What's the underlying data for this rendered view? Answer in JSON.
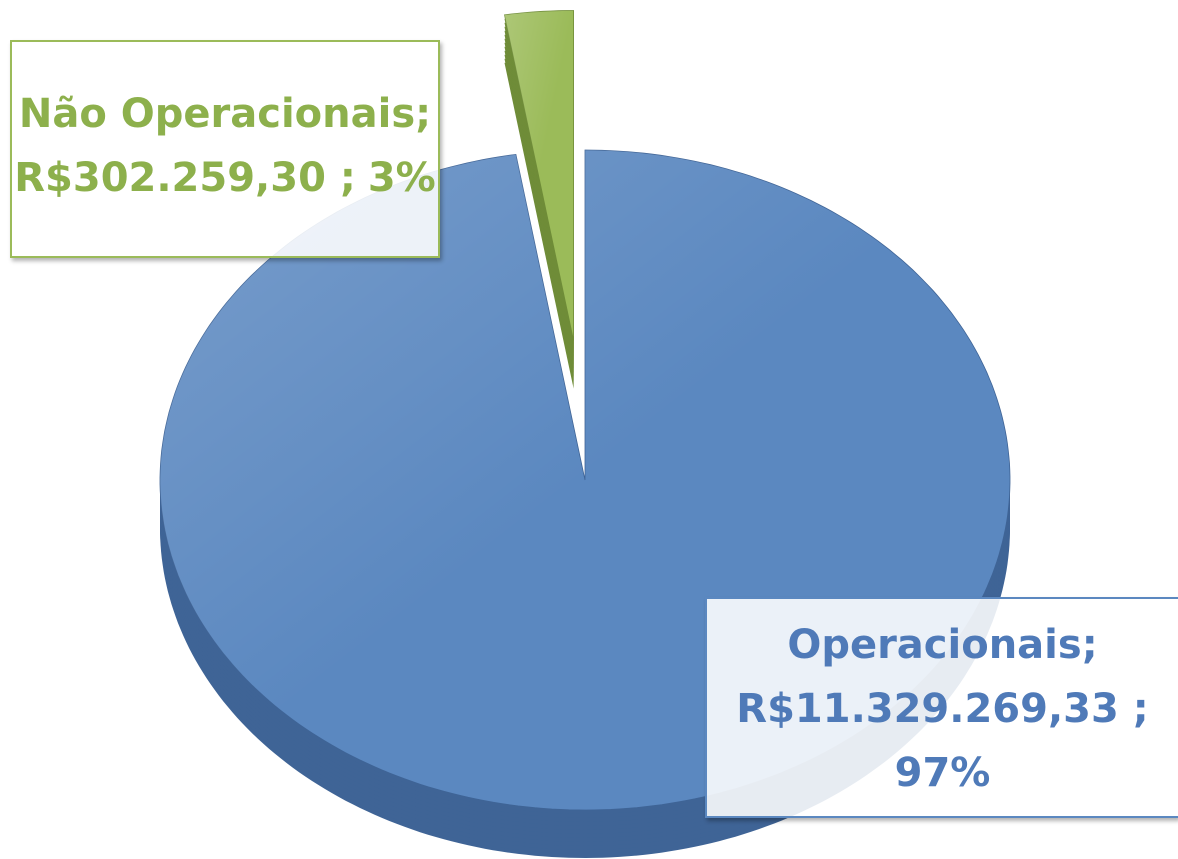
{
  "chart_data": {
    "type": "pie",
    "categories": [
      "Operacionais;",
      "Não Operacionais;"
    ],
    "values": [
      11329269.33,
      302259.3
    ],
    "value_labels": [
      "R$11.329.269,33 ;",
      "R$302.259,30 ;"
    ],
    "percents": [
      97,
      3
    ],
    "percent_labels": [
      "97%",
      "3%"
    ],
    "colors": [
      "#5b88c0",
      "#9bbb59"
    ],
    "side_colors": [
      "#3f6496",
      "#6f8c38"
    ],
    "explode": [
      false,
      true
    ]
  }
}
